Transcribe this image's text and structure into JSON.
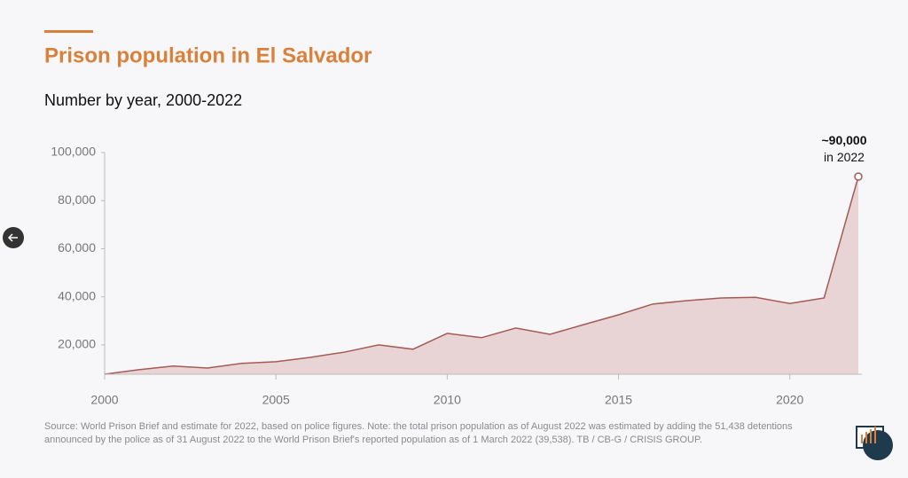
{
  "chart_data": {
    "type": "area",
    "title": "Prison population in El Salvador",
    "subtitle": "Number by year, 2000-2022",
    "x": [
      2000,
      2001,
      2002,
      2003,
      2004,
      2005,
      2006,
      2007,
      2008,
      2009,
      2010,
      2011,
      2012,
      2013,
      2014,
      2015,
      2016,
      2017,
      2018,
      2019,
      2020,
      2021,
      2022
    ],
    "values": [
      7800,
      9700,
      11200,
      10400,
      12300,
      13000,
      14800,
      17000,
      20000,
      18200,
      24800,
      23000,
      27000,
      24400,
      28500,
      32500,
      37000,
      38400,
      39500,
      39800,
      37200,
      39538,
      90000
    ],
    "color": "#a65a56",
    "fill": "#e9d4d5",
    "xlim": [
      2000,
      2022
    ],
    "xticks": [
      2000,
      2005,
      2010,
      2015,
      2020
    ],
    "ylim": [
      7800,
      100000
    ],
    "yticks": [
      {
        "value": 20000,
        "label": "20,000"
      },
      {
        "value": 40000,
        "label": "40,000"
      },
      {
        "value": 60000,
        "label": "60,000"
      },
      {
        "value": 80000,
        "label": "80,000"
      },
      {
        "value": 100000,
        "label": "100,000"
      }
    ],
    "annotation": {
      "value_label": "~90,000",
      "text": "in 2022"
    },
    "source": "Source: World Prison Brief and estimate for 2022, based on police figures. Note: the total prison population as of August 2022 was estimated by adding the 51,438 detentions announced by the police as of 31 August 2022 to the World Prison Brief's reported population as of 1 March 2022 (39,538). TB / CB-G / CRISIS GROUP."
  }
}
